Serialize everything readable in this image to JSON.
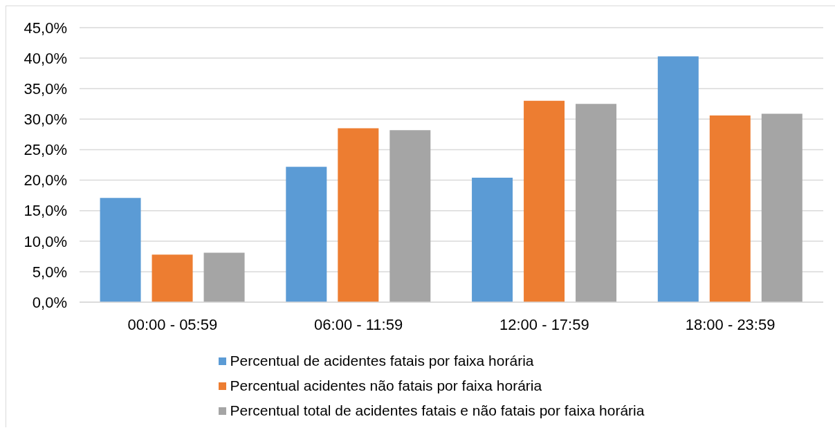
{
  "chart_data": {
    "type": "bar",
    "categories": [
      "00:00 - 05:59",
      "06:00 - 11:59",
      "12:00 - 17:59",
      "18:00 - 23:59"
    ],
    "series": [
      {
        "name": "Percentual de acidentes fatais por faixa horária",
        "color": "#5b9bd5",
        "values": [
          17.1,
          22.2,
          20.4,
          40.3
        ]
      },
      {
        "name": "Percentual acidentes não fatais por faixa horária",
        "color": "#ed7d31",
        "values": [
          7.8,
          28.5,
          33.0,
          30.6
        ]
      },
      {
        "name": "Percentual total de acidentes fatais e não fatais por faixa horária",
        "color": "#a5a5a5",
        "values": [
          8.1,
          28.2,
          32.5,
          30.9
        ]
      }
    ],
    "ylim": [
      0,
      45
    ],
    "yticks": [
      {
        "value": 0,
        "label": "0,0%"
      },
      {
        "value": 5,
        "label": "5,0%"
      },
      {
        "value": 10,
        "label": "10,0%"
      },
      {
        "value": 15,
        "label": "15,0%"
      },
      {
        "value": 20,
        "label": "20,0%"
      },
      {
        "value": 25,
        "label": "25,0%"
      },
      {
        "value": 30,
        "label": "30,0%"
      },
      {
        "value": 35,
        "label": "35,0%"
      },
      {
        "value": 40,
        "label": "40,0%"
      },
      {
        "value": 45,
        "label": "45,0%"
      }
    ],
    "grid": "y",
    "legend": "bottom"
  }
}
